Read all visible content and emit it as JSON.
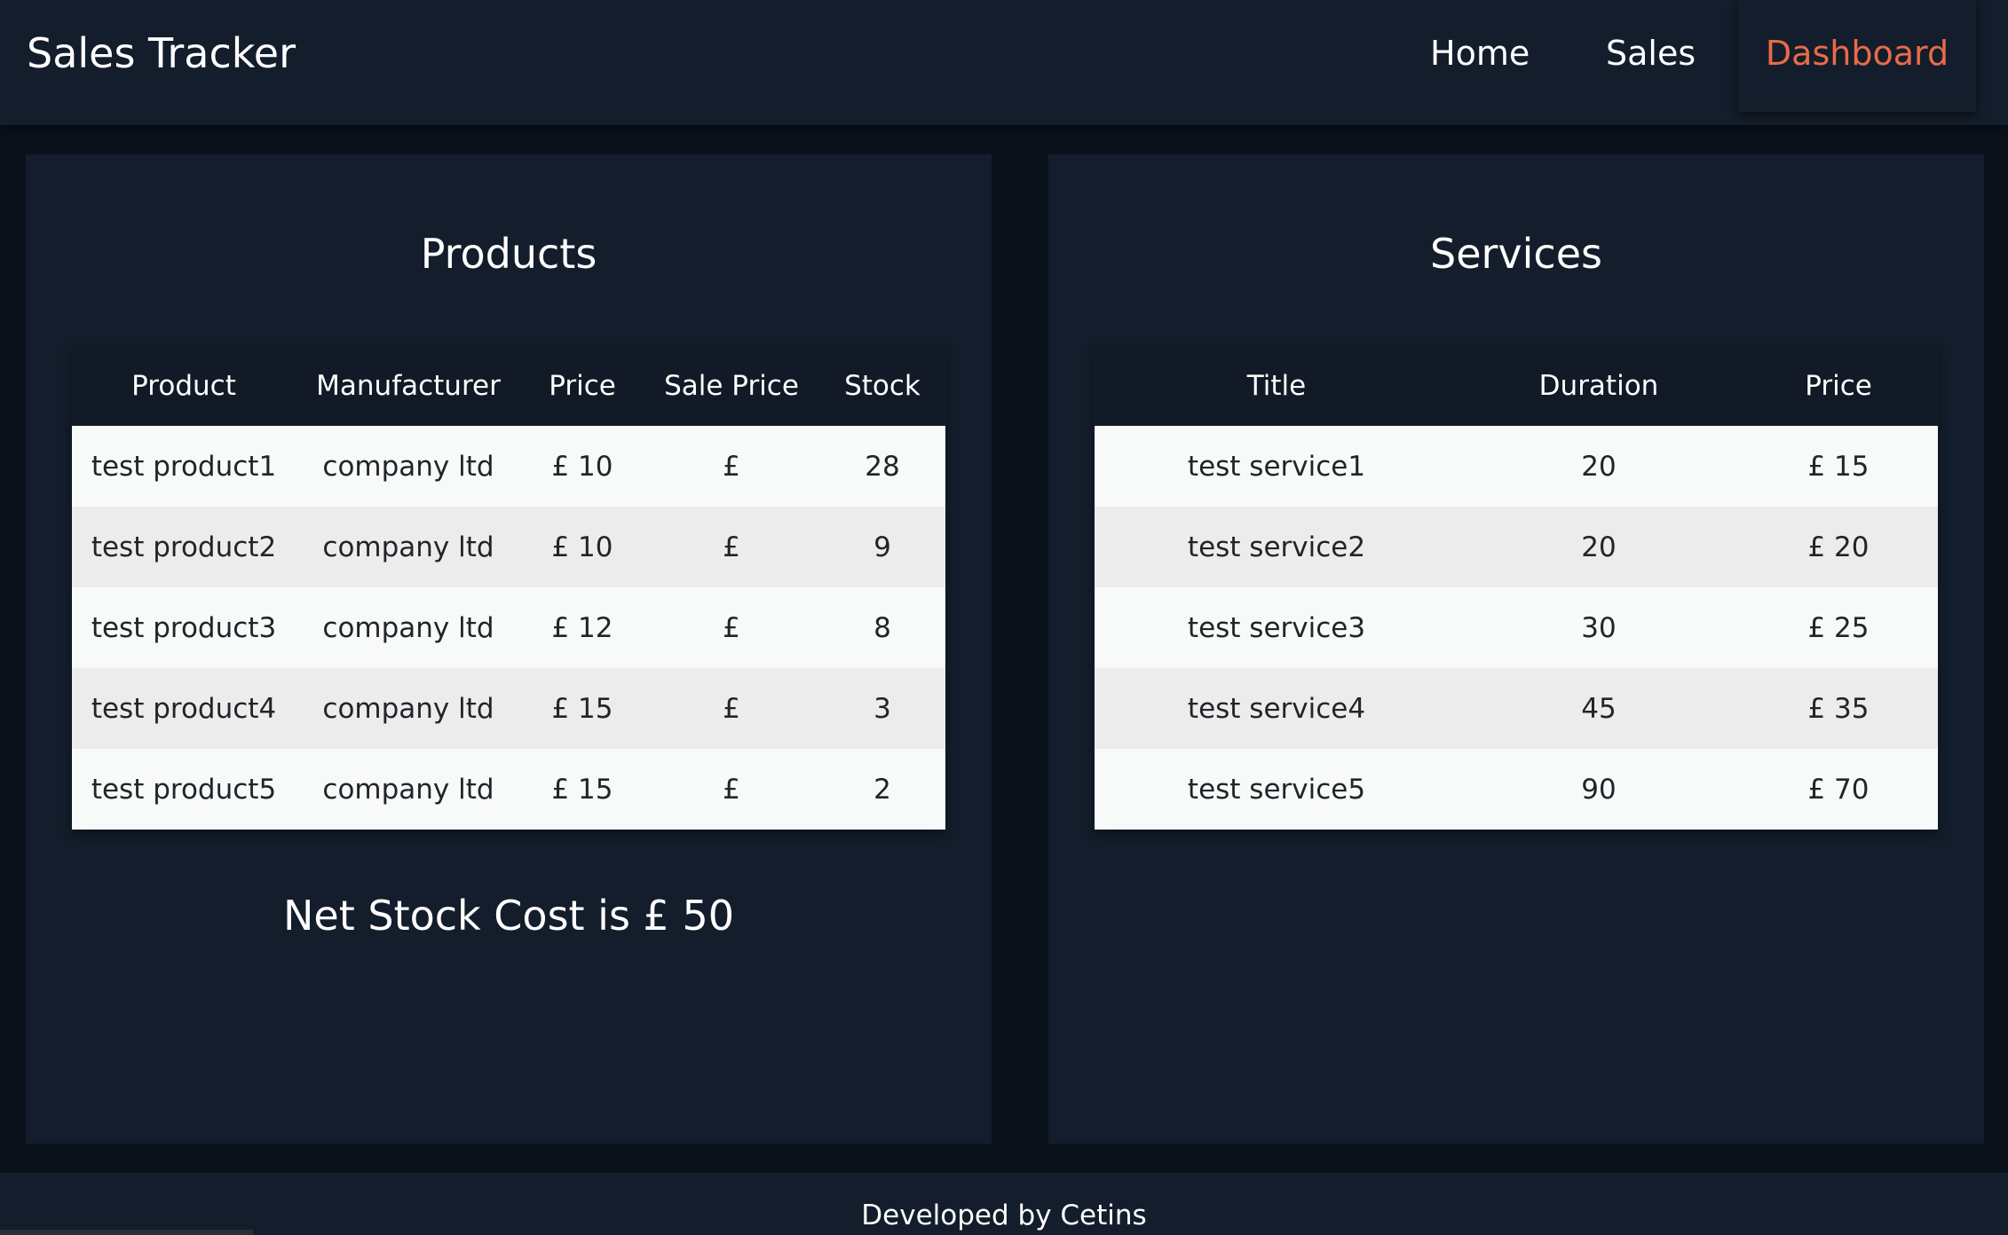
{
  "header": {
    "brand": "Sales Tracker",
    "nav": {
      "home": "Home",
      "sales": "Sales",
      "dashboard": "Dashboard"
    }
  },
  "products": {
    "title": "Products",
    "columns": [
      "Product",
      "Manufacturer",
      "Price",
      "Sale Price",
      "Stock"
    ],
    "rows": [
      [
        "test product1",
        "company ltd",
        "£ 10",
        "£",
        "28"
      ],
      [
        "test product2",
        "company ltd",
        "£ 10",
        "£",
        "9"
      ],
      [
        "test product3",
        "company ltd",
        "£ 12",
        "£",
        "8"
      ],
      [
        "test product4",
        "company ltd",
        "£ 15",
        "£",
        "3"
      ],
      [
        "test product5",
        "company ltd",
        "£ 15",
        "£",
        "2"
      ]
    ],
    "net_cost": "Net Stock Cost is £ 50"
  },
  "services": {
    "title": "Services",
    "columns": [
      "Title",
      "Duration",
      "Price"
    ],
    "rows": [
      [
        "test service1",
        "20",
        "£ 15"
      ],
      [
        "test service2",
        "20",
        "£ 20"
      ],
      [
        "test service3",
        "30",
        "£ 25"
      ],
      [
        "test service4",
        "45",
        "£ 35"
      ],
      [
        "test service5",
        "90",
        "£ 70"
      ]
    ]
  },
  "footer": {
    "text": "Developed by Cetins"
  },
  "colors": {
    "accent": "#e86b49",
    "panel": "#131d2b",
    "background": "#0a111a"
  }
}
